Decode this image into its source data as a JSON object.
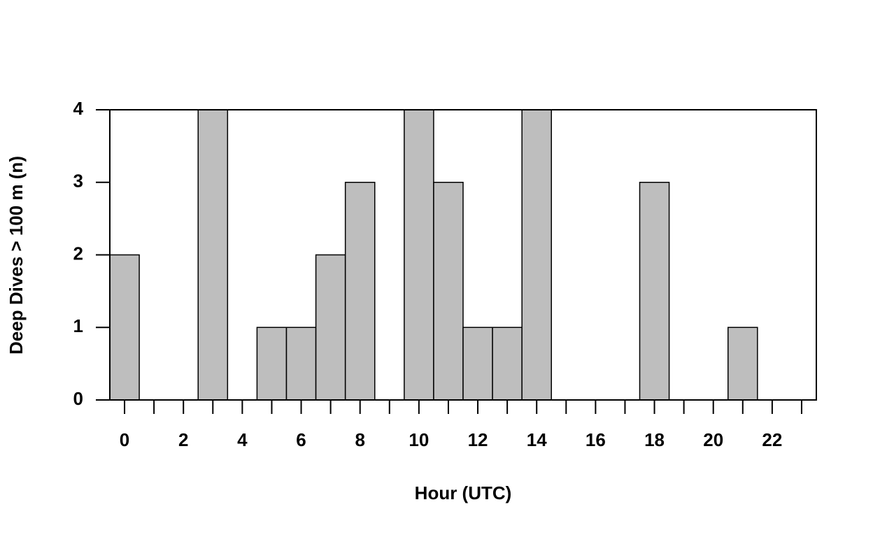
{
  "chart_data": {
    "type": "histogram",
    "xlabel": "Hour (UTC)",
    "ylabel": "Deep Dives > 100 m (n)",
    "bins": [
      -0.5,
      0.5,
      1.5,
      2.5,
      3.5,
      4.5,
      5.5,
      6.5,
      7.5,
      8.5,
      9.5,
      10.5,
      11.5,
      12.5,
      13.5,
      14.5,
      15.5,
      16.5,
      17.5,
      18.5,
      19.5,
      20.5,
      21.5,
      22.5,
      23.5
    ],
    "values": [
      2,
      0,
      0,
      4,
      0,
      1,
      1,
      2,
      3,
      0,
      4,
      3,
      1,
      1,
      4,
      0,
      0,
      0,
      3,
      0,
      0,
      1,
      0,
      0
    ],
    "color": "#bebebe",
    "xlim": [
      -0.5,
      23.5
    ],
    "ylim": [
      0,
      4
    ],
    "xticks": [
      0,
      2,
      4,
      6,
      8,
      10,
      12,
      14,
      16,
      18,
      20,
      22
    ],
    "xminor_ticks": [
      1,
      3,
      5,
      7,
      9,
      11,
      13,
      15,
      17,
      19,
      21,
      23
    ],
    "yticks": [
      0,
      1,
      2,
      3,
      4
    ]
  }
}
